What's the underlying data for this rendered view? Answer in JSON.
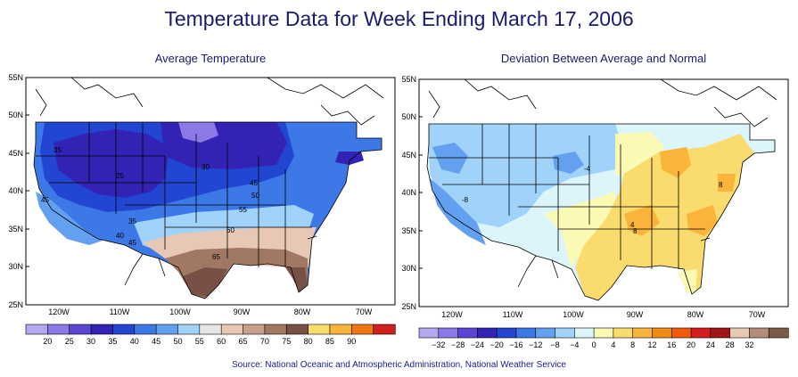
{
  "title": "Temperature Data for Week Ending March 17, 2006",
  "source": "Source:  National Oceanic and Atmospheric Administration, National Weather Service",
  "left_map": {
    "subtitle": "Average Temperature",
    "lat_labels": [
      "55N",
      "50N",
      "45N",
      "40N",
      "35N",
      "30N",
      "25N"
    ],
    "lon_labels": [
      "120W",
      "110W",
      "100W",
      "90W",
      "80W",
      "70W"
    ],
    "contour_labels": [
      "35",
      "25",
      "30",
      "45",
      "50",
      "45",
      "55",
      "35",
      "40",
      "45",
      "60",
      "65"
    ],
    "legend": {
      "labels": [
        "20",
        "25",
        "30",
        "35",
        "40",
        "45",
        "50",
        "55",
        "60",
        "65",
        "70",
        "75",
        "80",
        "85",
        "90"
      ],
      "colors": [
        "#b4a8f0",
        "#8c78e6",
        "#5a46d2",
        "#3223b4",
        "#2346d2",
        "#3c78e6",
        "#64a0f0",
        "#a0d2fa",
        "#e6e6e6",
        "#e6c8b4",
        "#c8a08c",
        "#a07864",
        "#785046",
        "#fadc6e",
        "#fab43c",
        "#f07814",
        "#d21e1e"
      ]
    }
  },
  "right_map": {
    "subtitle": "Deviation Between Average and Normal",
    "lat_labels": [
      "55N",
      "50N",
      "45N",
      "40N",
      "35N",
      "30N",
      "25N"
    ],
    "lon_labels": [
      "120W",
      "110W",
      "100W",
      "90W",
      "80W",
      "70W"
    ],
    "contour_labels": [
      "-8",
      "-4",
      "4",
      "8",
      "8"
    ],
    "legend": {
      "labels": [
        "−32",
        "−28",
        "−24",
        "−20",
        "−16",
        "−12",
        "−8",
        "−4",
        "0",
        "4",
        "8",
        "12",
        "16",
        "20",
        "24",
        "28",
        "32"
      ],
      "colors": [
        "#b4a8f0",
        "#8c78e6",
        "#5a46d2",
        "#3223b4",
        "#2346d2",
        "#3c78e6",
        "#64a0f0",
        "#a0d2fa",
        "#dcf5fa",
        "#fafab4",
        "#fadc6e",
        "#fab43c",
        "#f08c14",
        "#f05a0a",
        "#d21e1e",
        "#a01414",
        "#e6c8b4",
        "#b48c78",
        "#7a5a46"
      ]
    }
  }
}
